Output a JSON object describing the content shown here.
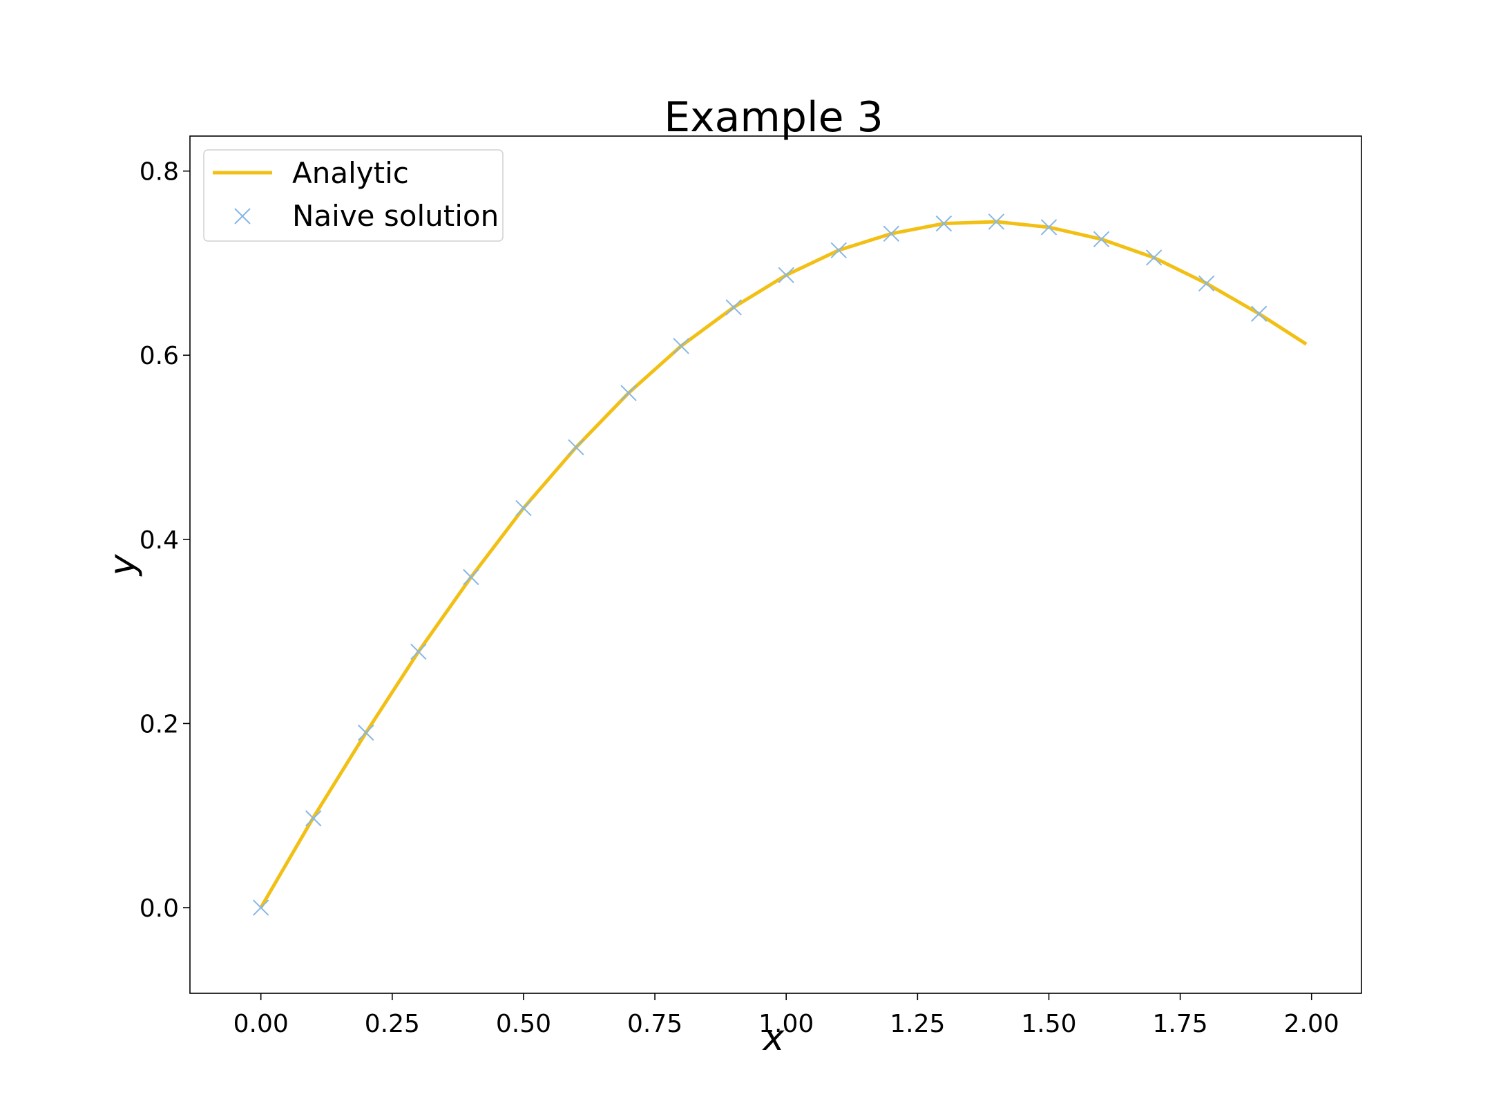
{
  "chart_data": {
    "type": "line",
    "title": "Example 3",
    "xlabel": "x",
    "ylabel": "y",
    "xlim": [
      -0.135,
      2.095
    ],
    "ylim": [
      -0.093,
      0.838
    ],
    "xticks": [
      0.0,
      0.25,
      0.5,
      0.75,
      1.0,
      1.25,
      1.5,
      1.75,
      2.0
    ],
    "xtick_labels": [
      "0.00",
      "0.25",
      "0.50",
      "0.75",
      "1.00",
      "1.25",
      "1.50",
      "1.75",
      "2.00"
    ],
    "yticks": [
      0.0,
      0.2,
      0.4,
      0.6,
      0.8
    ],
    "ytick_labels": [
      "0.0",
      "0.2",
      "0.4",
      "0.6",
      "0.8"
    ],
    "grid": false,
    "legend_position": "upper-left",
    "series": [
      {
        "name": "Analytic",
        "style": "line",
        "color": "#f2c015",
        "x": [
          0.0,
          0.1,
          0.2,
          0.3,
          0.4,
          0.5,
          0.6,
          0.7,
          0.8,
          0.9,
          1.0,
          1.1,
          1.2,
          1.3,
          1.4,
          1.5,
          1.6,
          1.7,
          1.8,
          1.9,
          1.99
        ],
        "y": [
          0.0,
          0.098,
          0.19,
          0.278,
          0.359,
          0.434,
          0.5,
          0.559,
          0.61,
          0.652,
          0.687,
          0.714,
          0.732,
          0.743,
          0.745,
          0.739,
          0.726,
          0.706,
          0.678,
          0.645,
          0.612
        ]
      },
      {
        "name": "Naive solution",
        "style": "marker-x",
        "color": "#86b7e6",
        "x": [
          0.0,
          0.1,
          0.2,
          0.3,
          0.4,
          0.5,
          0.6,
          0.7,
          0.8,
          0.9,
          1.0,
          1.1,
          1.2,
          1.3,
          1.4,
          1.5,
          1.6,
          1.7,
          1.8,
          1.9
        ],
        "y": [
          0.0,
          0.097,
          0.19,
          0.278,
          0.359,
          0.434,
          0.5,
          0.559,
          0.61,
          0.652,
          0.687,
          0.714,
          0.732,
          0.743,
          0.745,
          0.739,
          0.726,
          0.706,
          0.678,
          0.645
        ]
      }
    ]
  }
}
